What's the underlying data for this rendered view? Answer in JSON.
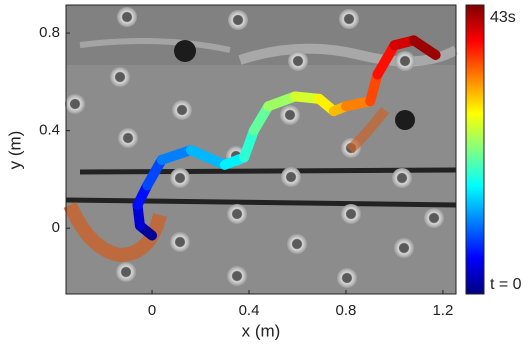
{
  "chart_data": {
    "type": "line",
    "xlabel": "x (m)",
    "ylabel": "y (m)",
    "xlim": [
      -0.355,
      1.254
    ],
    "ylim": [
      -0.27,
      0.915
    ],
    "xticks": [
      0,
      0.4,
      0.8,
      1.2
    ],
    "yticks": [
      0,
      0.4,
      0.8
    ],
    "series": [
      {
        "x": [
          0,
          -0.05,
          -0.06,
          -0.02,
          0.04,
          0.16,
          0.3,
          0.38,
          0.42,
          0.48,
          0.59,
          0.69,
          0.75,
          0.8,
          0.9,
          0.93,
          1.0,
          1.08,
          1.17
        ],
        "y": [
          -0.03,
          0.01,
          0.095,
          0.175,
          0.28,
          0.32,
          0.26,
          0.29,
          0.4,
          0.5,
          0.54,
          0.53,
          0.48,
          0.5,
          0.52,
          0.63,
          0.75,
          0.77,
          0.71
        ]
      }
    ],
    "colorbar": {
      "colormap": "jet",
      "lim": [
        0,
        43
      ],
      "ticks": [
        {
          "value": 0,
          "label": "t = 0"
        },
        {
          "value": 43,
          "label": "43s"
        }
      ]
    }
  }
}
